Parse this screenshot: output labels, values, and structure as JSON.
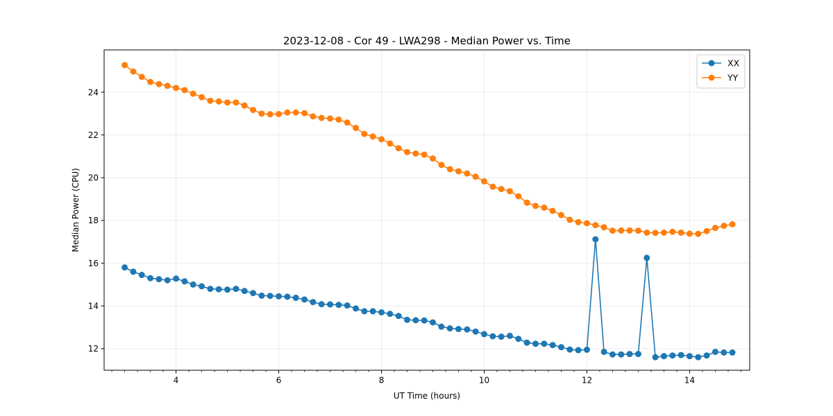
{
  "chart_data": {
    "type": "line",
    "title": "2023-12-08 - Cor 49 - LWA298 - Median Power vs. Time",
    "xlabel": "UT Time (hours)",
    "ylabel": "Median Power (CPU)",
    "xlim": [
      2.6,
      15.17
    ],
    "ylim": [
      10.99,
      25.98
    ],
    "xticks": [
      4,
      6,
      8,
      10,
      12,
      14
    ],
    "yticks": [
      12,
      14,
      16,
      18,
      20,
      22,
      24
    ],
    "x_tick_labels": [
      "4",
      "6",
      "8",
      "10",
      "12",
      "14"
    ],
    "y_tick_labels": [
      "12",
      "14",
      "16",
      "18",
      "20",
      "22",
      "24"
    ],
    "grid": true,
    "legend_position": "top-right",
    "x": [
      3.0,
      3.167,
      3.333,
      3.5,
      3.667,
      3.833,
      4.0,
      4.167,
      4.333,
      4.5,
      4.667,
      4.833,
      5.0,
      5.167,
      5.333,
      5.5,
      5.667,
      5.833,
      6.0,
      6.167,
      6.333,
      6.5,
      6.667,
      6.833,
      7.0,
      7.167,
      7.333,
      7.5,
      7.667,
      7.833,
      8.0,
      8.167,
      8.333,
      8.5,
      8.667,
      8.833,
      9.0,
      9.167,
      9.333,
      9.5,
      9.667,
      9.833,
      10.0,
      10.167,
      10.333,
      10.5,
      10.667,
      10.833,
      11.0,
      11.167,
      11.333,
      11.5,
      11.667,
      11.833,
      12.0,
      12.167,
      12.333,
      12.5,
      12.667,
      12.833,
      13.0,
      13.167,
      13.333,
      13.5,
      13.667,
      13.833,
      14.0,
      14.167,
      14.333,
      14.5,
      14.667,
      14.833
    ],
    "series": [
      {
        "name": "XX",
        "color": "#1f77b4",
        "values": [
          15.8,
          15.6,
          15.45,
          15.3,
          15.25,
          15.2,
          15.28,
          15.15,
          15.0,
          14.92,
          14.8,
          14.78,
          14.76,
          14.8,
          14.7,
          14.6,
          14.48,
          14.47,
          14.45,
          14.43,
          14.38,
          14.3,
          14.18,
          14.08,
          14.07,
          14.05,
          14.02,
          13.88,
          13.75,
          13.75,
          13.7,
          13.63,
          13.53,
          13.35,
          13.33,
          13.32,
          13.23,
          13.03,
          12.95,
          12.92,
          12.9,
          12.8,
          12.68,
          12.58,
          12.56,
          12.6,
          12.46,
          12.28,
          12.23,
          12.23,
          12.17,
          12.07,
          11.96,
          11.93,
          11.95,
          17.12,
          11.85,
          11.73,
          11.73,
          11.75,
          11.75,
          16.25,
          11.6,
          11.65,
          11.68,
          11.7,
          11.65,
          11.6,
          11.68,
          11.85,
          11.82,
          11.82
        ]
      },
      {
        "name": "YY",
        "color": "#ff7f0e",
        "values": [
          25.27,
          24.97,
          24.72,
          24.48,
          24.38,
          24.3,
          24.2,
          24.1,
          23.93,
          23.77,
          23.6,
          23.57,
          23.52,
          23.52,
          23.38,
          23.17,
          23.0,
          22.97,
          22.98,
          23.05,
          23.05,
          23.02,
          22.87,
          22.8,
          22.77,
          22.72,
          22.58,
          22.33,
          22.05,
          21.93,
          21.8,
          21.6,
          21.38,
          21.2,
          21.13,
          21.08,
          20.9,
          20.6,
          20.4,
          20.3,
          20.2,
          20.05,
          19.83,
          19.58,
          19.47,
          19.37,
          19.13,
          18.83,
          18.68,
          18.6,
          18.45,
          18.25,
          18.03,
          17.92,
          17.87,
          17.78,
          17.68,
          17.52,
          17.53,
          17.53,
          17.52,
          17.43,
          17.42,
          17.43,
          17.47,
          17.43,
          17.38,
          17.37,
          17.5,
          17.65,
          17.75,
          17.82
        ]
      }
    ]
  }
}
